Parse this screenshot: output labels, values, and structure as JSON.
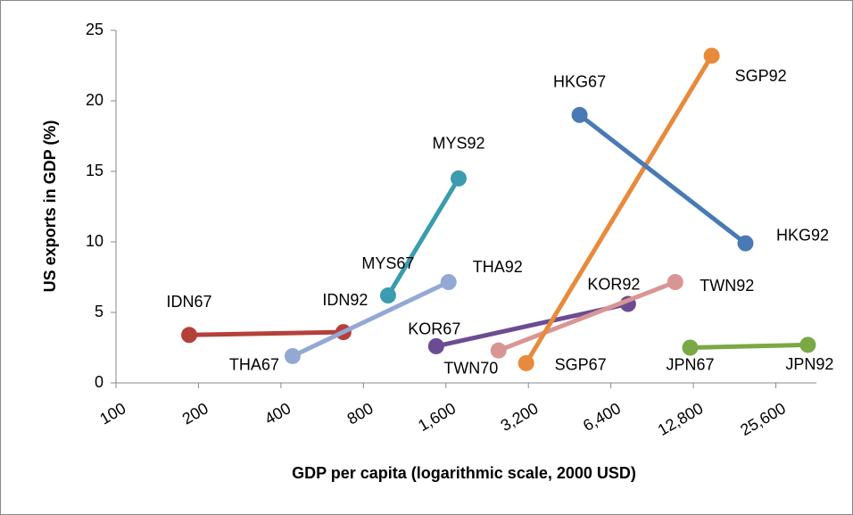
{
  "chart_data": {
    "type": "line",
    "xlabel": "GDP per capita (logarithmic scale, 2000 USD)",
    "ylabel": "US exports in GDP (%)",
    "xscale": "log",
    "xlim": [
      100,
      36000
    ],
    "xticks": [
      100,
      200,
      400,
      800,
      {
        "value": 1600,
        "label": "1,600"
      },
      {
        "value": 3200,
        "label": "3,200"
      },
      {
        "value": 6400,
        "label": "6,400"
      },
      {
        "value": 12800,
        "label": "12,800"
      },
      {
        "value": 25600,
        "label": "25,600"
      }
    ],
    "ylim": [
      0,
      25
    ],
    "yticks": [
      0,
      5,
      10,
      15,
      20,
      25
    ],
    "series": [
      {
        "color": "#b5403a",
        "x": [
          185,
          676
        ],
        "values": [
          3.4,
          3.6
        ],
        "point_labels": [
          "IDN67",
          "IDN92"
        ]
      },
      {
        "color": "#93a9d4",
        "x": [
          441,
          1636
        ],
        "values": [
          1.9,
          7.15
        ],
        "point_labels": [
          "THA67",
          "THA92"
        ]
      },
      {
        "color": "#3a9cae",
        "x": [
          984,
          1780
        ],
        "values": [
          6.2,
          14.5
        ],
        "point_labels": [
          "MYS67",
          "MYS92"
        ]
      },
      {
        "color": "#6b4c93",
        "x": [
          1474,
          7390
        ],
        "values": [
          2.6,
          5.6
        ],
        "point_labels": [
          "KOR67",
          "KOR92"
        ]
      },
      {
        "color": "#d99594",
        "x": [
          2490,
          10990
        ],
        "values": [
          2.3,
          7.15
        ],
        "point_labels": [
          "TWN70",
          "TWN92"
        ]
      },
      {
        "color": "#e88a3b",
        "x": [
          3140,
          14930
        ],
        "values": [
          1.4,
          23.2
        ],
        "point_labels": [
          "SGP67",
          "SGP92"
        ]
      },
      {
        "color": "#4a7ab5",
        "x": [
          4920,
          19830
        ],
        "values": [
          19.0,
          9.9
        ],
        "point_labels": [
          "HKG67",
          "HKG92"
        ]
      },
      {
        "color": "#7aa845",
        "x": [
          12460,
          33500
        ],
        "values": [
          2.5,
          2.7
        ],
        "point_labels": [
          "JPN67",
          "JPN92"
        ]
      }
    ]
  }
}
